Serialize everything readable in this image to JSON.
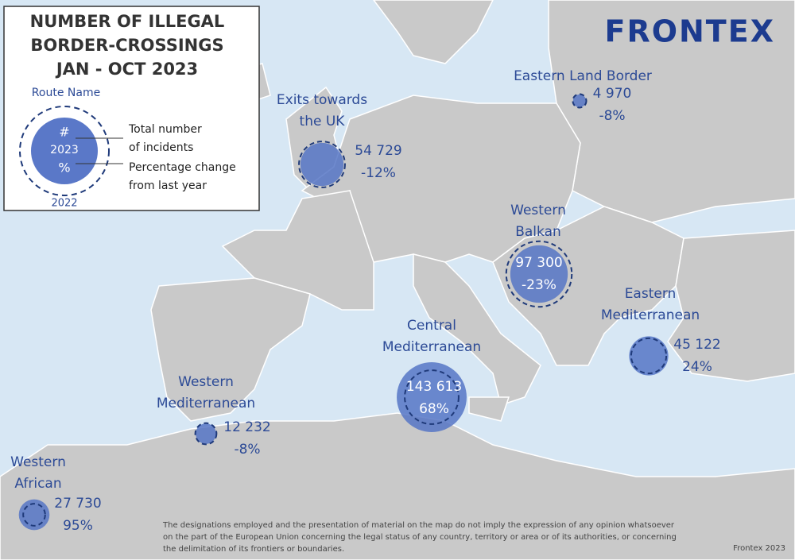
{
  "header": {
    "title_lines": [
      "NUMBER OF ILLEGAL",
      "BORDER-CROSSINGS",
      "JAN - OCT 2023"
    ],
    "logo": "FRONTEX"
  },
  "legend": {
    "route_name": "Route Name",
    "count": "#",
    "year": "2023",
    "change": "%",
    "count_note_lines": [
      "Total number",
      "of incidents"
    ],
    "change_note_lines": [
      "Percentage change",
      "from last year"
    ],
    "previous_year": "2022"
  },
  "routes": [
    {
      "name_lines": [
        "Eastern Land Border"
      ],
      "value": 4970,
      "value_label": "4 970",
      "change_label": "-8%",
      "value_2022": 5400
    },
    {
      "name_lines": [
        "Exits towards",
        "the UK"
      ],
      "value": 54729,
      "value_label": "54 729",
      "change_label": "-12%",
      "value_2022": 62200
    },
    {
      "name_lines": [
        "Western",
        "Balkan"
      ],
      "value": 97300,
      "value_label": "97 300",
      "change_label": "-23%",
      "value_2022": 126400
    },
    {
      "name_lines": [
        "Eastern",
        "Mediterranean"
      ],
      "value": 45122,
      "value_label": "45 122",
      "change_label": "24%",
      "value_2022": 36400
    },
    {
      "name_lines": [
        "Central",
        "Mediterranean"
      ],
      "value": 143613,
      "value_label": "143 613",
      "change_label": "68%",
      "value_2022": 85500
    },
    {
      "name_lines": [
        "Western",
        "Mediterranean"
      ],
      "value": 12232,
      "value_label": "12 232",
      "change_label": "-8%",
      "value_2022": 13300
    },
    {
      "name_lines": [
        "Western",
        "African"
      ],
      "value": 27730,
      "value_label": "27 730",
      "change_label": "95%",
      "value_2022": 14200
    }
  ],
  "footer": {
    "disclaimer_lines": [
      "The designations employed and the presentation of material on the map do not imply the expression of any opinion whatsoever",
      "on the part of the European Union concerning the legal status of any country, territory or area or of its authorities, or concerning",
      "the delimitation of its frontiers or boundaries."
    ],
    "credit": "Frontex 2023"
  }
}
